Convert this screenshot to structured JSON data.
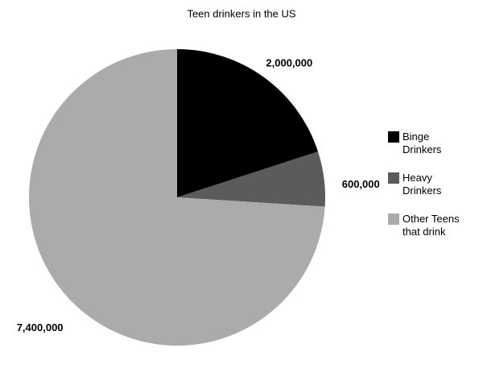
{
  "chart_data": {
    "type": "pie",
    "title": "Teen drinkers in the US",
    "categories": [
      "Binge Drinkers",
      "Heavy Drinkers",
      "Other Teens that drink"
    ],
    "values": [
      2000000,
      600000,
      7400000
    ],
    "value_labels": [
      "2,000,000",
      "600,000",
      "7,400,000"
    ],
    "colors": [
      "#000000",
      "#5b5b5b",
      "#ababab"
    ],
    "legend": "right"
  }
}
